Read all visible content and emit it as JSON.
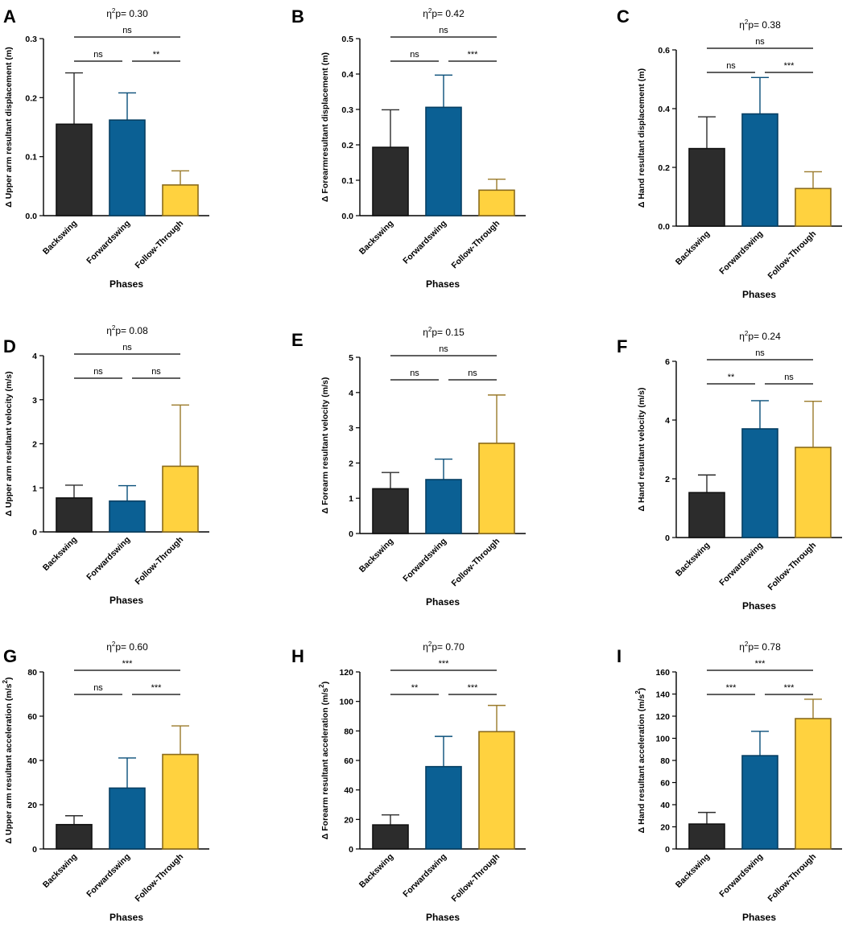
{
  "figure": {
    "x_axis_title": "Phases",
    "categories": [
      "Backswing",
      "Forwardswing",
      "Follow-Through"
    ],
    "bar_colors": [
      "#2c2c2c",
      "#0b6094",
      "#ffd23f"
    ],
    "bar_stroke_colors": [
      "#111111",
      "#063f63",
      "#8a6b1c"
    ],
    "error_bar_colors": [
      "#2c2c2c",
      "#084e79",
      "#9a7a2a"
    ],
    "eta_prefix": "η",
    "eta_sup": "2",
    "eta_suffix": "p= "
  },
  "chart_data": [
    {
      "panel": "A",
      "type": "bar",
      "eta_value": "0.30",
      "ylabel": "Δ Upper arm resultant displacement (m)",
      "ylabel_sup": "",
      "ylabel_end": "",
      "categories": [
        "Backswing",
        "Forwardswing",
        "Follow-Through"
      ],
      "values": [
        0.155,
        0.162,
        0.052
      ],
      "errors": [
        0.087,
        0.046,
        0.024
      ],
      "ylim": [
        0,
        0.3
      ],
      "yticks": [
        "0.0",
        "0.1",
        "0.2",
        "0.3"
      ],
      "comparisons": [
        {
          "from": 0,
          "to": 2,
          "label": "ns"
        },
        {
          "from": 0,
          "to": 1,
          "label": "ns"
        },
        {
          "from": 1,
          "to": 2,
          "label": "**"
        }
      ]
    },
    {
      "panel": "B",
      "type": "bar",
      "eta_value": "0.42",
      "ylabel": "Δ Forearmresultant displacement (m)",
      "ylabel_sup": "",
      "ylabel_end": "",
      "categories": [
        "Backswing",
        "Forwardswing",
        "Follow-Through"
      ],
      "values": [
        0.193,
        0.306,
        0.072
      ],
      "errors": [
        0.106,
        0.091,
        0.031
      ],
      "ylim": [
        0,
        0.5
      ],
      "yticks": [
        "0.0",
        "0.1",
        "0.2",
        "0.3",
        "0.4",
        "0.5"
      ],
      "comparisons": [
        {
          "from": 0,
          "to": 2,
          "label": "ns"
        },
        {
          "from": 0,
          "to": 1,
          "label": "ns"
        },
        {
          "from": 1,
          "to": 2,
          "label": "***"
        }
      ]
    },
    {
      "panel": "C",
      "type": "bar",
      "eta_value": "0.38",
      "ylabel": "Δ Hand resultant displacement (m)",
      "ylabel_sup": "",
      "ylabel_end": "",
      "categories": [
        "Backswing",
        "Forwardswing",
        "Follow-Through"
      ],
      "values": [
        0.264,
        0.382,
        0.128
      ],
      "errors": [
        0.108,
        0.124,
        0.057
      ],
      "ylim": [
        0,
        0.6
      ],
      "yticks": [
        "0.0",
        "0.2",
        "0.4",
        "0.6"
      ],
      "comparisons": [
        {
          "from": 0,
          "to": 2,
          "label": "ns"
        },
        {
          "from": 0,
          "to": 1,
          "label": "ns"
        },
        {
          "from": 1,
          "to": 2,
          "label": "***"
        }
      ]
    },
    {
      "panel": "D",
      "type": "bar",
      "eta_value": "0.08",
      "ylabel": "Δ Upper arm resultant velocity (m/s)",
      "ylabel_sup": "",
      "ylabel_end": "",
      "categories": [
        "Backswing",
        "Forwardswing",
        "Follow-Through"
      ],
      "values": [
        0.77,
        0.7,
        1.49
      ],
      "errors": [
        0.29,
        0.35,
        1.39
      ],
      "ylim": [
        0,
        4
      ],
      "yticks": [
        "0",
        "1",
        "2",
        "3",
        "4"
      ],
      "comparisons": [
        {
          "from": 0,
          "to": 2,
          "label": "ns"
        },
        {
          "from": 0,
          "to": 1,
          "label": "ns"
        },
        {
          "from": 1,
          "to": 2,
          "label": "ns"
        }
      ]
    },
    {
      "panel": "E",
      "type": "bar",
      "eta_value": "0.15",
      "ylabel": "Δ Forearm resultant velocity (m/s)",
      "ylabel_sup": "",
      "ylabel_end": "",
      "categories": [
        "Backswing",
        "Forwardswing",
        "Follow-Through"
      ],
      "values": [
        1.27,
        1.53,
        2.56
      ],
      "errors": [
        0.46,
        0.58,
        1.37
      ],
      "ylim": [
        0,
        5
      ],
      "yticks": [
        "0",
        "1",
        "2",
        "3",
        "4",
        "5"
      ],
      "comparisons": [
        {
          "from": 0,
          "to": 2,
          "label": "ns"
        },
        {
          "from": 0,
          "to": 1,
          "label": "ns"
        },
        {
          "from": 1,
          "to": 2,
          "label": "ns"
        }
      ]
    },
    {
      "panel": "F",
      "type": "bar",
      "eta_value": "0.24",
      "ylabel": "Δ Hand resultant velocity (m/s)",
      "ylabel_sup": "",
      "ylabel_end": "",
      "categories": [
        "Backswing",
        "Forwardswing",
        "Follow-Through"
      ],
      "values": [
        1.53,
        3.7,
        3.07
      ],
      "errors": [
        0.6,
        0.96,
        1.57
      ],
      "ylim": [
        0,
        6
      ],
      "yticks": [
        "0",
        "2",
        "4",
        "6"
      ],
      "comparisons": [
        {
          "from": 0,
          "to": 2,
          "label": "ns"
        },
        {
          "from": 0,
          "to": 1,
          "label": "**"
        },
        {
          "from": 1,
          "to": 2,
          "label": "ns"
        }
      ]
    },
    {
      "panel": "G",
      "type": "bar",
      "eta_value": "0.60",
      "ylabel": "Δ Upper arm resultant acceleration (m/s",
      "ylabel_sup": "2",
      "ylabel_end": ")",
      "categories": [
        "Backswing",
        "Forwardswing",
        "Follow-Through"
      ],
      "values": [
        11.0,
        27.5,
        42.7
      ],
      "errors": [
        4.0,
        13.6,
        12.9
      ],
      "ylim": [
        0,
        80
      ],
      "yticks": [
        "0",
        "20",
        "40",
        "60",
        "80"
      ],
      "comparisons": [
        {
          "from": 0,
          "to": 2,
          "label": "***"
        },
        {
          "from": 0,
          "to": 1,
          "label": "ns"
        },
        {
          "from": 1,
          "to": 2,
          "label": "***"
        }
      ]
    },
    {
      "panel": "H",
      "type": "bar",
      "eta_value": "0.70",
      "ylabel": "Δ Forearm resultant acceleration (m/s",
      "ylabel_sup": "2",
      "ylabel_end": ")",
      "categories": [
        "Backswing",
        "Forwardswing",
        "Follow-Through"
      ],
      "values": [
        16.3,
        55.8,
        79.5
      ],
      "errors": [
        6.8,
        20.5,
        17.8
      ],
      "ylim": [
        0,
        120
      ],
      "yticks": [
        "0",
        "20",
        "40",
        "60",
        "80",
        "100",
        "120"
      ],
      "comparisons": [
        {
          "from": 0,
          "to": 2,
          "label": "***"
        },
        {
          "from": 0,
          "to": 1,
          "label": "**"
        },
        {
          "from": 1,
          "to": 2,
          "label": "***"
        }
      ]
    },
    {
      "panel": "I",
      "type": "bar",
      "eta_value": "0.78",
      "ylabel": "Δ Hand resultant acceleration (m/s",
      "ylabel_sup": "2",
      "ylabel_end": ")",
      "categories": [
        "Backswing",
        "Forwardswing",
        "Follow-Through"
      ],
      "values": [
        22.5,
        84.3,
        117.8
      ],
      "errors": [
        10.5,
        22.0,
        17.5
      ],
      "ylim": [
        0,
        160
      ],
      "yticks": [
        "0",
        "20",
        "40",
        "60",
        "80",
        "100",
        "120",
        "140",
        "160"
      ],
      "comparisons": [
        {
          "from": 0,
          "to": 2,
          "label": "***"
        },
        {
          "from": 0,
          "to": 1,
          "label": "***"
        },
        {
          "from": 1,
          "to": 2,
          "label": "***"
        }
      ]
    }
  ]
}
